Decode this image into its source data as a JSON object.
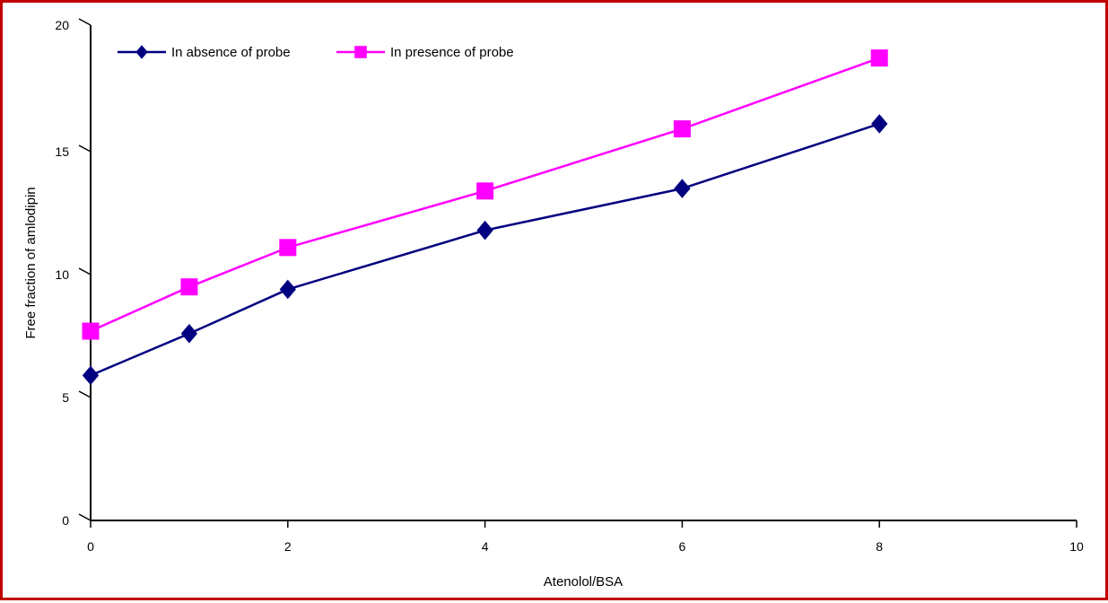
{
  "chart_data": {
    "type": "line",
    "title": "",
    "xlabel": "Atenolol/BSA",
    "ylabel": "Free fraction of amlodipin",
    "xlim": [
      0,
      10
    ],
    "ylim": [
      0,
      20
    ],
    "x_ticks": [
      "0",
      "2",
      "4",
      "6",
      "8",
      "10"
    ],
    "y_ticks": [
      "0",
      "5",
      "10",
      "15",
      "20"
    ],
    "grid": false,
    "legend_position": "top-left",
    "x": [
      0,
      1,
      2,
      4,
      6,
      8
    ],
    "series": [
      {
        "name": "In absence of probe",
        "marker": "diamond",
        "color": "#000080",
        "values": [
          5.9,
          7.6,
          9.4,
          11.8,
          13.5,
          16.1
        ]
      },
      {
        "name": "In presence of probe",
        "marker": "square",
        "color": "#ff00ff",
        "values": [
          7.7,
          9.5,
          11.1,
          13.4,
          15.9,
          18.7
        ]
      }
    ]
  }
}
